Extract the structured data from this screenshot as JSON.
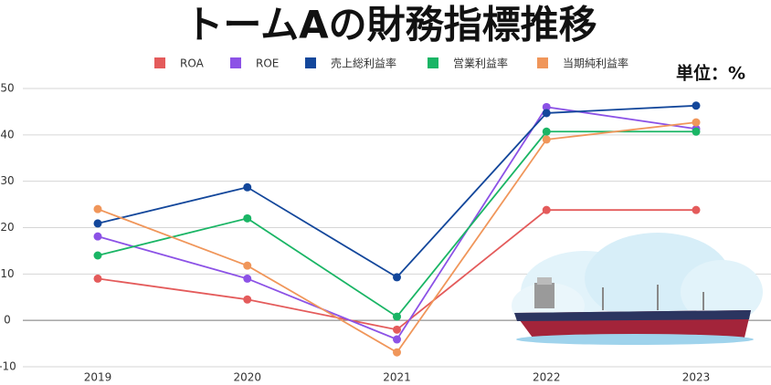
{
  "chart_data": {
    "type": "line",
    "title": "トームAの財務指標推移",
    "unit_label": "単位：%",
    "categories": [
      "2019",
      "2020",
      "2021",
      "2022",
      "2023"
    ],
    "ylim": [
      -10,
      50
    ],
    "yticks": [
      -10,
      0,
      10,
      20,
      30,
      40,
      50
    ],
    "grid": true,
    "series": [
      {
        "name": "ROA",
        "color": "#e45b5b",
        "values": [
          9,
          4.5,
          -2,
          23.8,
          23.8
        ]
      },
      {
        "name": "ROE",
        "color": "#8c52e6",
        "values": [
          18.1,
          9,
          -4.1,
          46,
          41.3
        ]
      },
      {
        "name": "売上総利益率",
        "color": "#13479b",
        "values": [
          20.9,
          28.7,
          9.3,
          44.7,
          46.3
        ]
      },
      {
        "name": "営業利益率",
        "color": "#1ab565",
        "values": [
          14,
          22,
          0.8,
          40.7,
          40.7
        ]
      },
      {
        "name": "当期純利益率",
        "color": "#f0965a",
        "values": [
          24,
          11.8,
          -6.9,
          39,
          42.7
        ]
      }
    ]
  }
}
